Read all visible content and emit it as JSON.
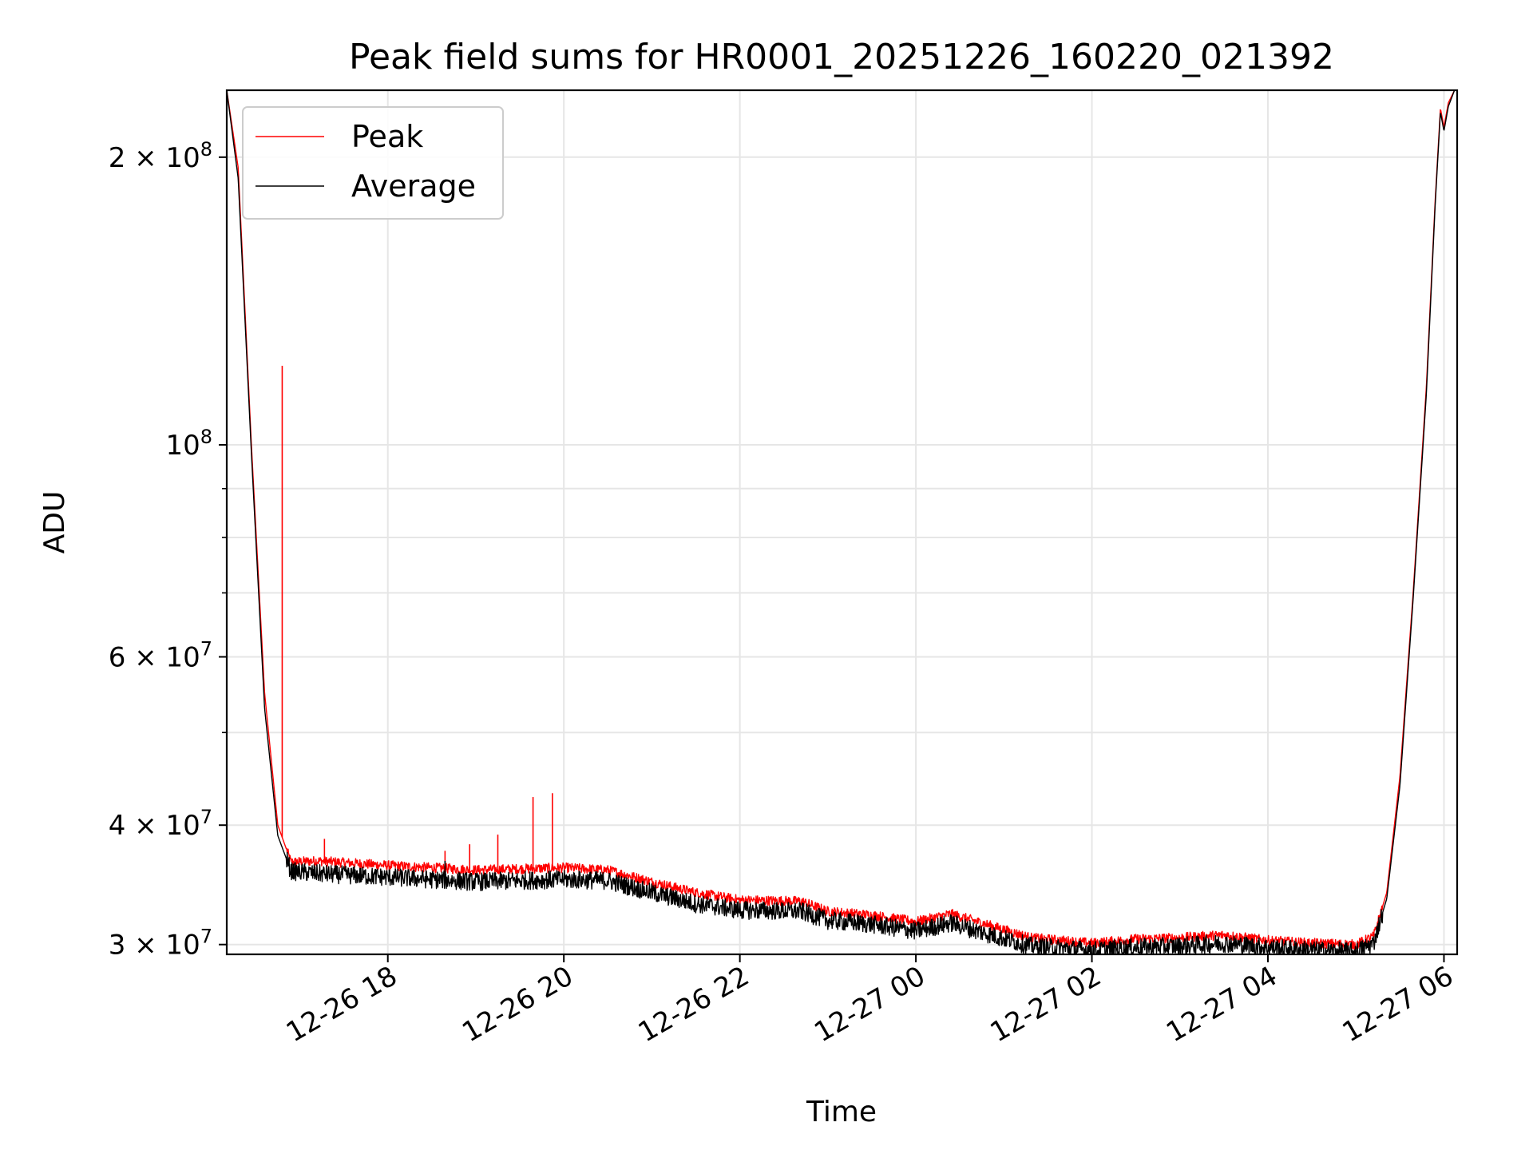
{
  "chart_data": {
    "type": "line",
    "title": "Peak field sums for HR0001_20251226_160220_021392",
    "xlabel": "Time",
    "ylabel": "ADU",
    "yscale": "log",
    "ylim": [
      29300000,
      235000000
    ],
    "xlim_hours": [
      16.17,
      30.15
    ],
    "grid": true,
    "legend_position": "upper-left",
    "x_ticks": [
      {
        "hour": 18,
        "label": "12-26 18"
      },
      {
        "hour": 20,
        "label": "12-26 20"
      },
      {
        "hour": 22,
        "label": "12-26 22"
      },
      {
        "hour": 24,
        "label": "12-27 00"
      },
      {
        "hour": 26,
        "label": "12-27 02"
      },
      {
        "hour": 28,
        "label": "12-27 04"
      },
      {
        "hour": 30,
        "label": "12-27 06"
      }
    ],
    "y_major_ticks": [
      {
        "value": 30000000,
        "mantissa": "3 × 10",
        "exp": "7"
      },
      {
        "value": 40000000,
        "mantissa": "4 × 10",
        "exp": "7"
      },
      {
        "value": 60000000,
        "mantissa": "6 × 10",
        "exp": "7"
      },
      {
        "value": 100000000,
        "mantissa": "10",
        "exp": "8"
      },
      {
        "value": 200000000,
        "mantissa": "2 × 10",
        "exp": "8"
      }
    ],
    "y_minor_ticks": [
      50000000,
      70000000,
      80000000,
      90000000
    ],
    "series": [
      {
        "name": "Peak",
        "color": "#ff0000",
        "envelope": [
          {
            "t": 16.17,
            "v": 235000000
          },
          {
            "t": 16.3,
            "v": 195000000
          },
          {
            "t": 16.45,
            "v": 100000000
          },
          {
            "t": 16.6,
            "v": 55000000
          },
          {
            "t": 16.75,
            "v": 40000000
          },
          {
            "t": 16.9,
            "v": 36600000
          },
          {
            "t": 17.2,
            "v": 36700000
          },
          {
            "t": 18.0,
            "v": 36300000
          },
          {
            "t": 19.0,
            "v": 35900000
          },
          {
            "t": 20.0,
            "v": 36100000
          },
          {
            "t": 20.5,
            "v": 35900000
          },
          {
            "t": 21.0,
            "v": 34900000
          },
          {
            "t": 21.5,
            "v": 34000000
          },
          {
            "t": 22.0,
            "v": 33400000
          },
          {
            "t": 22.7,
            "v": 33300000
          },
          {
            "t": 23.0,
            "v": 32500000
          },
          {
            "t": 23.5,
            "v": 32200000
          },
          {
            "t": 24.0,
            "v": 31700000
          },
          {
            "t": 24.4,
            "v": 32300000
          },
          {
            "t": 24.8,
            "v": 31500000
          },
          {
            "t": 25.3,
            "v": 30500000
          },
          {
            "t": 26.0,
            "v": 30100000
          },
          {
            "t": 26.5,
            "v": 30400000
          },
          {
            "t": 27.0,
            "v": 30500000
          },
          {
            "t": 27.5,
            "v": 30700000
          },
          {
            "t": 28.0,
            "v": 30300000
          },
          {
            "t": 28.5,
            "v": 30100000
          },
          {
            "t": 29.0,
            "v": 30000000
          },
          {
            "t": 29.2,
            "v": 30600000
          },
          {
            "t": 29.35,
            "v": 34000000
          },
          {
            "t": 29.5,
            "v": 45000000
          },
          {
            "t": 29.65,
            "v": 70000000
          },
          {
            "t": 29.8,
            "v": 115000000
          },
          {
            "t": 29.9,
            "v": 180000000
          },
          {
            "t": 29.96,
            "v": 225000000
          },
          {
            "t": 30.0,
            "v": 215000000
          },
          {
            "t": 30.05,
            "v": 228000000
          },
          {
            "t": 30.12,
            "v": 235000000
          }
        ],
        "spikes": [
          {
            "t": 16.8,
            "v": 121000000
          },
          {
            "t": 17.28,
            "v": 38700000
          },
          {
            "t": 18.65,
            "v": 37600000
          },
          {
            "t": 18.93,
            "v": 38200000
          },
          {
            "t": 19.25,
            "v": 39100000
          },
          {
            "t": 19.65,
            "v": 42800000
          },
          {
            "t": 19.87,
            "v": 43200000
          }
        ]
      },
      {
        "name": "Average",
        "color": "#000000",
        "envelope": [
          {
            "t": 16.17,
            "v": 235000000
          },
          {
            "t": 16.3,
            "v": 190000000
          },
          {
            "t": 16.45,
            "v": 98000000
          },
          {
            "t": 16.6,
            "v": 53000000
          },
          {
            "t": 16.75,
            "v": 39000000
          },
          {
            "t": 16.9,
            "v": 35800000
          },
          {
            "t": 17.2,
            "v": 35600000
          },
          {
            "t": 18.0,
            "v": 35300000
          },
          {
            "t": 19.0,
            "v": 34900000
          },
          {
            "t": 20.0,
            "v": 35100000
          },
          {
            "t": 20.5,
            "v": 35000000
          },
          {
            "t": 21.0,
            "v": 34000000
          },
          {
            "t": 21.5,
            "v": 33100000
          },
          {
            "t": 22.0,
            "v": 32600000
          },
          {
            "t": 22.7,
            "v": 32500000
          },
          {
            "t": 23.0,
            "v": 31800000
          },
          {
            "t": 23.5,
            "v": 31500000
          },
          {
            "t": 24.0,
            "v": 31000000
          },
          {
            "t": 24.4,
            "v": 31600000
          },
          {
            "t": 24.8,
            "v": 30800000
          },
          {
            "t": 25.3,
            "v": 29900000
          },
          {
            "t": 26.0,
            "v": 29600000
          },
          {
            "t": 26.5,
            "v": 29800000
          },
          {
            "t": 27.0,
            "v": 29900000
          },
          {
            "t": 27.5,
            "v": 30100000
          },
          {
            "t": 28.0,
            "v": 29800000
          },
          {
            "t": 28.5,
            "v": 29600000
          },
          {
            "t": 29.0,
            "v": 29500000
          },
          {
            "t": 29.2,
            "v": 30100000
          },
          {
            "t": 29.35,
            "v": 33500000
          },
          {
            "t": 29.5,
            "v": 44000000
          },
          {
            "t": 29.65,
            "v": 69000000
          },
          {
            "t": 29.8,
            "v": 113000000
          },
          {
            "t": 29.9,
            "v": 178000000
          },
          {
            "t": 29.96,
            "v": 223000000
          },
          {
            "t": 30.0,
            "v": 213000000
          },
          {
            "t": 30.05,
            "v": 226000000
          },
          {
            "t": 30.12,
            "v": 235000000
          }
        ],
        "spikes": [
          {
            "t": 18.65,
            "v": 36700000
          }
        ]
      }
    ]
  }
}
